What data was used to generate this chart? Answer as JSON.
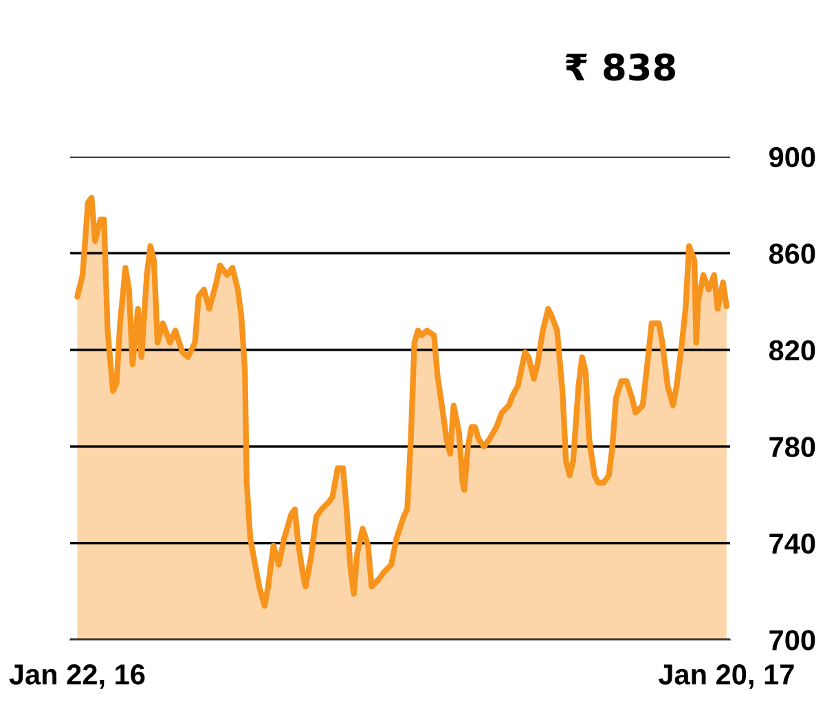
{
  "chart_data": {
    "type": "area",
    "title": "₹ 838",
    "x": [
      "2016-01-22",
      "2016-01-25",
      "2016-01-28",
      "2016-01-30",
      "2016-02-01",
      "2016-02-04",
      "2016-02-06",
      "2016-02-08",
      "2016-02-11",
      "2016-02-13",
      "2016-02-15",
      "2016-02-18",
      "2016-02-20",
      "2016-02-22",
      "2016-02-25",
      "2016-02-27",
      "2016-03-01",
      "2016-03-03",
      "2016-03-05",
      "2016-03-07",
      "2016-03-10",
      "2016-03-14",
      "2016-03-17",
      "2016-03-21",
      "2016-03-24",
      "2016-03-28",
      "2016-03-30",
      "2016-04-02",
      "2016-04-05",
      "2016-04-09",
      "2016-04-11",
      "2016-04-15",
      "2016-04-18",
      "2016-04-21",
      "2016-04-23",
      "2016-04-25",
      "2016-04-26",
      "2016-04-28",
      "2016-04-30",
      "2016-05-03",
      "2016-05-06",
      "2016-05-08",
      "2016-05-11",
      "2016-05-14",
      "2016-05-17",
      "2016-05-21",
      "2016-05-23",
      "2016-05-25",
      "2016-05-28",
      "2016-05-29",
      "2016-06-01",
      "2016-06-04",
      "2016-06-07",
      "2016-06-11",
      "2016-06-13",
      "2016-06-16",
      "2016-06-19",
      "2016-06-21",
      "2016-06-23",
      "2016-06-25",
      "2016-06-27",
      "2016-06-30",
      "2016-07-03",
      "2016-07-05",
      "2016-07-09",
      "2016-07-12",
      "2016-07-16",
      "2016-07-19",
      "2016-07-23",
      "2016-07-25",
      "2016-07-27",
      "2016-07-29",
      "2016-07-31",
      "2016-08-02",
      "2016-08-05",
      "2016-08-09",
      "2016-08-11",
      "2016-08-14",
      "2016-08-16",
      "2016-08-18",
      "2016-08-20",
      "2016-08-23",
      "2016-08-25",
      "2016-08-26",
      "2016-08-28",
      "2016-08-30",
      "2016-09-01",
      "2016-09-03",
      "2016-09-06",
      "2016-09-09",
      "2016-09-13",
      "2016-09-16",
      "2016-09-20",
      "2016-09-22",
      "2016-09-25",
      "2016-09-29",
      "2016-10-01",
      "2016-10-04",
      "2016-10-06",
      "2016-10-09",
      "2016-10-12",
      "2016-10-14",
      "2016-10-17",
      "2016-10-20",
      "2016-10-22",
      "2016-10-24",
      "2016-10-26",
      "2016-10-29",
      "2016-10-31",
      "2016-11-02",
      "2016-11-04",
      "2016-11-07",
      "2016-11-09",
      "2016-11-12",
      "2016-11-15",
      "2016-11-17",
      "2016-11-19",
      "2016-11-22",
      "2016-11-25",
      "2016-11-28",
      "2016-11-30",
      "2016-12-04",
      "2016-12-07",
      "2016-12-09",
      "2016-12-13",
      "2016-12-15",
      "2016-12-18",
      "2016-12-21",
      "2016-12-23",
      "2016-12-26",
      "2016-12-28",
      "2016-12-30",
      "2017-01-02",
      "2017-01-03",
      "2017-01-04",
      "2017-01-07",
      "2017-01-10",
      "2017-01-13",
      "2017-01-15",
      "2017-01-18",
      "2017-01-20"
    ],
    "series": [
      {
        "color": "#f7941d",
        "values": [
          842,
          851,
          881,
          883,
          865,
          874,
          874,
          828,
          803,
          806,
          831,
          854,
          845,
          814,
          837,
          817,
          851,
          863,
          857,
          823,
          831,
          823,
          828,
          819,
          817,
          823,
          842,
          845,
          837,
          848,
          855,
          851,
          854,
          845,
          834,
          811,
          765,
          742,
          734,
          722,
          714,
          722,
          739,
          731,
          742,
          752,
          754,
          739,
          725,
          722,
          734,
          751,
          754,
          757,
          759,
          771,
          771,
          754,
          731,
          719,
          736,
          746,
          739,
          722,
          725,
          728,
          731,
          742,
          751,
          754,
          783,
          823,
          828,
          826,
          828,
          826,
          809,
          794,
          783,
          777,
          797,
          786,
          765,
          762,
          780,
          788,
          788,
          783,
          780,
          783,
          788,
          794,
          797,
          801,
          805,
          819,
          817,
          808,
          814,
          828,
          837,
          834,
          828,
          803,
          774,
          768,
          774,
          805,
          817,
          811,
          783,
          768,
          765,
          765,
          768,
          780,
          800,
          807,
          807,
          800,
          794,
          797,
          817,
          831,
          831,
          823,
          805,
          797,
          805,
          823,
          837,
          863,
          857,
          823,
          840,
          851,
          845,
          851,
          837,
          848,
          838
        ]
      }
    ],
    "xlim": [
      "2016-01-18",
      "2017-01-22"
    ],
    "xticks": [
      {
        "value": "2016-01-22",
        "label": "Jan 22, 16"
      },
      {
        "value": "2017-01-20",
        "label": "Jan 20, 17"
      }
    ],
    "ylim": [
      700,
      900
    ],
    "yticks": [
      700,
      740,
      780,
      820,
      860,
      900
    ],
    "grid": "y",
    "legend": false
  }
}
